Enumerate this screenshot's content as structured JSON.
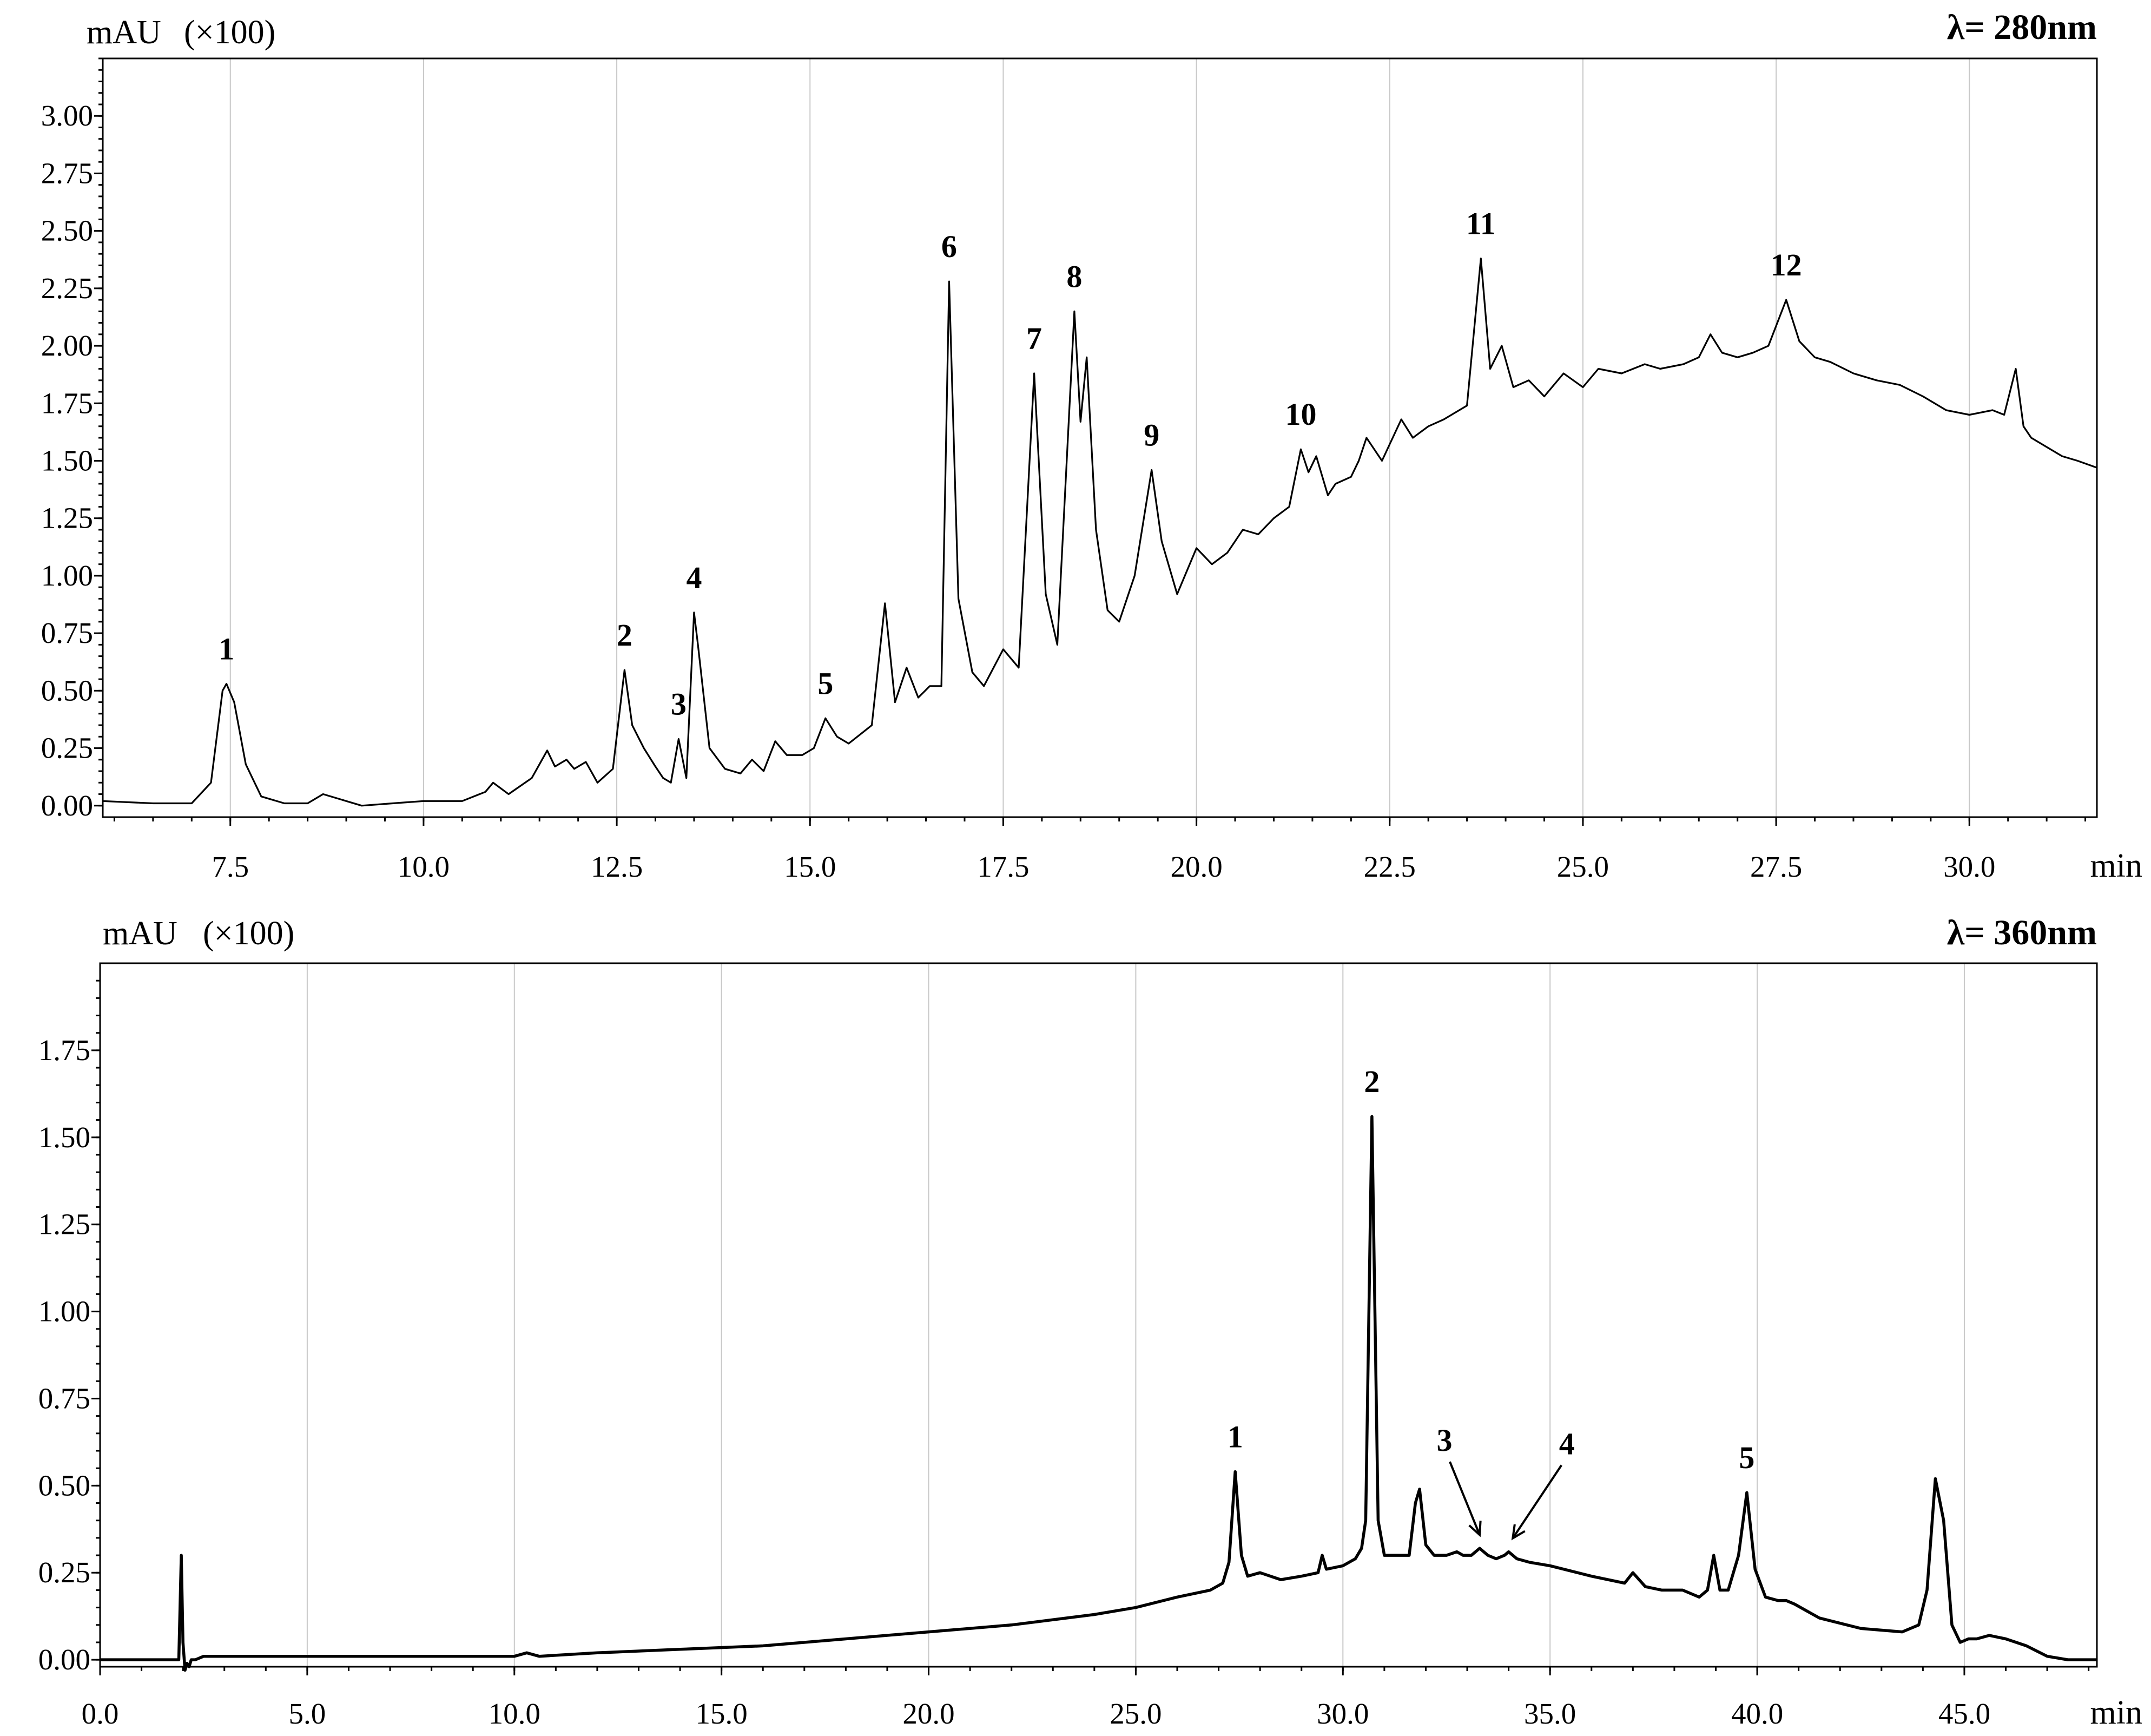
{
  "chart_data": [
    {
      "type": "line",
      "y_unit_label": "mAU",
      "y_scale_label": "(×100)",
      "x_unit_label": "min",
      "wavelength_label": "λ= 280nm",
      "xlim": [
        5.85,
        31.65
      ],
      "ylim": [
        -0.05,
        3.25
      ],
      "x_ticks": [
        7.5,
        10.0,
        12.5,
        15.0,
        17.5,
        20.0,
        22.5,
        25.0,
        27.5,
        30.0
      ],
      "x_tick_labels": [
        "7.5",
        "10.0",
        "12.5",
        "15.0",
        "17.5",
        "20.0",
        "22.5",
        "25.0",
        "27.5",
        "30.0"
      ],
      "y_ticks": [
        0.0,
        0.25,
        0.5,
        0.75,
        1.0,
        1.25,
        1.5,
        1.75,
        2.0,
        2.25,
        2.5,
        2.75,
        3.0
      ],
      "y_tick_labels": [
        "0.00",
        "0.25",
        "0.50",
        "0.75",
        "1.00",
        "1.25",
        "1.50",
        "1.75",
        "2.00",
        "2.25",
        "2.50",
        "2.75",
        "3.00"
      ],
      "grid": "vertical",
      "series": [
        {
          "x": [
            5.85,
            6.5,
            7.0,
            7.25,
            7.4,
            7.45,
            7.55,
            7.7,
            7.9,
            8.2,
            8.5,
            8.7,
            8.9,
            9.2,
            9.6,
            10.0,
            10.5,
            10.8,
            10.9,
            11.1,
            11.4,
            11.6,
            11.7,
            11.85,
            11.95,
            12.1,
            12.25,
            12.45,
            12.6,
            12.7,
            12.85,
            13.0,
            13.1,
            13.2,
            13.3,
            13.4,
            13.5,
            13.55,
            13.7,
            13.9,
            14.1,
            14.25,
            14.4,
            14.55,
            14.7,
            14.9,
            15.05,
            15.2,
            15.35,
            15.5,
            15.65,
            15.8,
            15.97,
            16.1,
            16.25,
            16.4,
            16.55,
            16.7,
            16.8,
            16.92,
            17.1,
            17.25,
            17.5,
            17.7,
            17.9,
            18.05,
            18.2,
            18.42,
            18.5,
            18.58,
            18.7,
            18.85,
            19.0,
            19.2,
            19.42,
            19.55,
            19.75,
            20.0,
            20.2,
            20.4,
            20.6,
            20.8,
            21.0,
            21.2,
            21.35,
            21.45,
            21.55,
            21.7,
            21.8,
            22.0,
            22.1,
            22.2,
            22.4,
            22.65,
            22.8,
            23.0,
            23.2,
            23.5,
            23.68,
            23.8,
            23.95,
            24.1,
            24.3,
            24.5,
            24.75,
            25.0,
            25.2,
            25.5,
            25.8,
            26.0,
            26.3,
            26.5,
            26.65,
            26.8,
            27.0,
            27.2,
            27.4,
            27.63,
            27.8,
            28.0,
            28.2,
            28.5,
            28.8,
            29.1,
            29.4,
            29.7,
            30.0,
            30.3,
            30.45,
            30.6,
            30.7,
            30.8,
            31.0,
            31.2,
            31.4,
            31.65
          ],
          "y": [
            0.02,
            0.01,
            0.01,
            0.1,
            0.5,
            0.53,
            0.45,
            0.18,
            0.04,
            0.01,
            0.01,
            0.05,
            0.03,
            0.0,
            0.01,
            0.02,
            0.02,
            0.06,
            0.1,
            0.05,
            0.12,
            0.24,
            0.17,
            0.2,
            0.16,
            0.19,
            0.1,
            0.16,
            0.59,
            0.35,
            0.25,
            0.17,
            0.12,
            0.1,
            0.29,
            0.12,
            0.84,
            0.7,
            0.25,
            0.16,
            0.14,
            0.2,
            0.15,
            0.28,
            0.22,
            0.22,
            0.25,
            0.38,
            0.3,
            0.27,
            0.31,
            0.35,
            0.88,
            0.45,
            0.6,
            0.47,
            0.52,
            0.52,
            2.28,
            0.9,
            0.58,
            0.52,
            0.68,
            0.6,
            1.88,
            0.92,
            0.7,
            2.15,
            1.67,
            1.95,
            1.2,
            0.85,
            0.8,
            1.0,
            1.46,
            1.15,
            0.92,
            1.12,
            1.05,
            1.1,
            1.2,
            1.18,
            1.25,
            1.3,
            1.55,
            1.45,
            1.52,
            1.35,
            1.4,
            1.43,
            1.5,
            1.6,
            1.5,
            1.68,
            1.6,
            1.65,
            1.68,
            1.74,
            2.38,
            1.9,
            2.0,
            1.82,
            1.85,
            1.78,
            1.88,
            1.82,
            1.9,
            1.88,
            1.92,
            1.9,
            1.92,
            1.95,
            2.05,
            1.97,
            1.95,
            1.97,
            2.0,
            2.2,
            2.02,
            1.95,
            1.93,
            1.88,
            1.85,
            1.83,
            1.78,
            1.72,
            1.7,
            1.72,
            1.7,
            1.9,
            1.65,
            1.6,
            1.56,
            1.52,
            1.5,
            1.47
          ]
        }
      ],
      "peak_labels": [
        {
          "label": "1",
          "x": 7.45,
          "y": 0.53
        },
        {
          "label": "2",
          "x": 12.6,
          "y": 0.59
        },
        {
          "label": "3",
          "x": 13.3,
          "y": 0.29
        },
        {
          "label": "4",
          "x": 13.5,
          "y": 0.84
        },
        {
          "label": "5",
          "x": 15.2,
          "y": 0.38
        },
        {
          "label": "6",
          "x": 16.8,
          "y": 2.28
        },
        {
          "label": "7",
          "x": 17.9,
          "y": 1.88
        },
        {
          "label": "8",
          "x": 18.42,
          "y": 2.15
        },
        {
          "label": "9",
          "x": 19.42,
          "y": 1.46
        },
        {
          "label": "10",
          "x": 21.35,
          "y": 1.55
        },
        {
          "label": "11",
          "x": 23.68,
          "y": 2.38
        },
        {
          "label": "12",
          "x": 27.63,
          "y": 2.2
        }
      ]
    },
    {
      "type": "line",
      "y_unit_label": "mAU",
      "y_scale_label": "(×100)",
      "x_unit_label": "min",
      "wavelength_label": "λ= 360nm",
      "xlim": [
        0.0,
        48.2
      ],
      "ylim": [
        -0.02,
        2.0
      ],
      "x_ticks": [
        0.0,
        5.0,
        10.0,
        15.0,
        20.0,
        25.0,
        30.0,
        35.0,
        40.0,
        45.0
      ],
      "x_tick_labels": [
        "0.0",
        "5.0",
        "10.0",
        "15.0",
        "20.0",
        "25.0",
        "30.0",
        "35.0",
        "40.0",
        "45.0"
      ],
      "y_ticks": [
        0.0,
        0.25,
        0.5,
        0.75,
        1.0,
        1.25,
        1.5,
        1.75
      ],
      "y_tick_labels": [
        "0.00",
        "0.25",
        "0.50",
        "0.75",
        "1.00",
        "1.25",
        "1.50",
        "1.75"
      ],
      "grid": "vertical",
      "series": [
        {
          "x": [
            0.0,
            1.9,
            1.96,
            2.0,
            2.05,
            2.1,
            2.15,
            2.2,
            2.3,
            2.5,
            3.0,
            5.0,
            8.0,
            10.0,
            10.3,
            10.6,
            12.0,
            14.0,
            16.0,
            18.0,
            20.0,
            22.0,
            24.0,
            25.0,
            26.0,
            26.8,
            27.1,
            27.25,
            27.4,
            27.55,
            27.7,
            28.0,
            28.5,
            29.0,
            29.4,
            29.5,
            29.6,
            30.0,
            30.3,
            30.45,
            30.55,
            30.7,
            30.85,
            31.0,
            31.3,
            31.6,
            31.75,
            31.85,
            32.0,
            32.2,
            32.5,
            32.75,
            32.9,
            33.1,
            33.3,
            33.5,
            33.7,
            33.9,
            34.0,
            34.2,
            34.5,
            35.0,
            36.0,
            36.8,
            37.0,
            37.3,
            37.7,
            38.2,
            38.6,
            38.8,
            38.95,
            39.1,
            39.3,
            39.55,
            39.75,
            39.95,
            40.2,
            40.5,
            40.7,
            40.9,
            41.5,
            42.5,
            43.5,
            43.9,
            44.1,
            44.3,
            44.5,
            44.7,
            44.9,
            45.1,
            45.3,
            45.6,
            46.0,
            46.5,
            47.0,
            47.5,
            48.2
          ],
          "y": [
            0.0,
            0.0,
            0.3,
            0.05,
            -0.03,
            -0.01,
            -0.02,
            0.0,
            0.0,
            0.01,
            0.01,
            0.01,
            0.01,
            0.01,
            0.02,
            0.01,
            0.02,
            0.03,
            0.04,
            0.06,
            0.08,
            0.1,
            0.13,
            0.15,
            0.18,
            0.2,
            0.22,
            0.28,
            0.54,
            0.3,
            0.24,
            0.25,
            0.23,
            0.24,
            0.25,
            0.3,
            0.26,
            0.27,
            0.29,
            0.32,
            0.4,
            1.56,
            0.4,
            0.3,
            0.3,
            0.3,
            0.45,
            0.49,
            0.33,
            0.3,
            0.3,
            0.31,
            0.3,
            0.3,
            0.32,
            0.3,
            0.29,
            0.3,
            0.31,
            0.29,
            0.28,
            0.27,
            0.24,
            0.22,
            0.25,
            0.21,
            0.2,
            0.2,
            0.18,
            0.2,
            0.3,
            0.2,
            0.2,
            0.3,
            0.48,
            0.26,
            0.18,
            0.17,
            0.17,
            0.16,
            0.12,
            0.09,
            0.08,
            0.1,
            0.2,
            0.52,
            0.4,
            0.1,
            0.05,
            0.06,
            0.06,
            0.07,
            0.06,
            0.04,
            0.01,
            0.0,
            0.0
          ]
        }
      ],
      "peak_labels": [
        {
          "label": "1",
          "x": 27.4,
          "y": 0.54
        },
        {
          "label": "2",
          "x": 30.7,
          "y": 1.56
        },
        {
          "label": "3",
          "x": 33.3,
          "y": 0.32
        },
        {
          "label": "4",
          "x": 34.1,
          "y": 0.31
        },
        {
          "label": "5",
          "x": 39.75,
          "y": 0.48
        }
      ]
    }
  ]
}
